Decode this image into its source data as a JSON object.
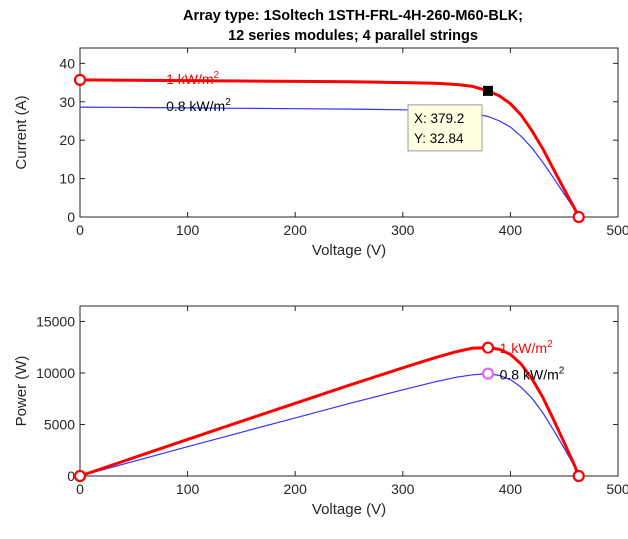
{
  "chart_data": {
    "title_line1": "Array type: 1Soltech 1STH-FRL-4H-260-M60-BLK;",
    "title_line2": "12 series modules; 4 parallel strings",
    "colors": {
      "high": "#ff0000",
      "low": "#3333ff",
      "datatip_bg": "#ffffe1",
      "marker": "#000000",
      "low_marker": "#dd66ff"
    },
    "panels": [
      {
        "type": "line",
        "id": "iv",
        "xlabel": "Voltage (V)",
        "ylabel": "Current (A)",
        "xlim": [
          0,
          500
        ],
        "ylim": [
          0,
          44
        ],
        "xticks": [
          0,
          100,
          200,
          300,
          400,
          500
        ],
        "yticks": [
          0,
          10,
          20,
          30,
          40
        ],
        "grid": false,
        "series": [
          {
            "name": "1 kW/m",
            "label_sup": "2",
            "label_xy": [
              80,
              35.9
            ],
            "color": "#ff0000",
            "x": [
              0,
              50,
              100,
              150,
              200,
              250,
              300,
              330,
              350,
              365,
              379.2,
              390,
              400,
              410,
              420,
              430,
              440,
              450,
              460,
              463.5
            ],
            "y": [
              35.7,
              35.6,
              35.5,
              35.4,
              35.3,
              35.2,
              35.0,
              34.8,
              34.5,
              34.0,
              32.84,
              31.5,
              29.5,
              26.5,
              22.5,
              17.8,
              12.5,
              7.2,
              2.0,
              0
            ]
          },
          {
            "name": "0.8 kW/m",
            "label_sup": "2",
            "label_xy": [
              80,
              28.9
            ],
            "color": "#3333ff",
            "x": [
              0,
              50,
              100,
              150,
              200,
              250,
              300,
              330,
              350,
              365,
              379.2,
              390,
              400,
              410,
              420,
              430,
              440,
              450,
              460,
              463
            ],
            "y": [
              28.6,
              28.5,
              28.4,
              28.3,
              28.2,
              28.1,
              27.9,
              27.7,
              27.4,
              26.9,
              26.2,
              25.0,
              23.4,
              21.0,
              18.0,
              14.3,
              10.2,
              6.0,
              1.8,
              0
            ]
          }
        ],
        "markers": [
          {
            "shape": "circle",
            "color": "#ff0000",
            "x": 0,
            "y": 35.7
          },
          {
            "shape": "circle",
            "color": "#ff0000",
            "x": 463.5,
            "y": 0
          },
          {
            "shape": "square",
            "color": "#000000",
            "x": 379.2,
            "y": 32.84
          }
        ],
        "datatip": {
          "x_label": "X: 379.2",
          "y_label": "Y: 32.84",
          "x": 379.2,
          "y": 32.84
        }
      },
      {
        "type": "line",
        "id": "pv",
        "xlabel": "Voltage (V)",
        "ylabel": "Power (W)",
        "xlim": [
          0,
          500
        ],
        "ylim": [
          0,
          16500
        ],
        "xticks": [
          0,
          100,
          200,
          300,
          400,
          500
        ],
        "yticks": [
          0,
          5000,
          10000,
          15000
        ],
        "grid": false,
        "series": [
          {
            "name": "1 kW/m",
            "label_sup": "2",
            "label_xy": [
              390,
              12400
            ],
            "color": "#ff0000",
            "x": [
              0,
              50,
              100,
              150,
              200,
              250,
              300,
              330,
              350,
              365,
              379.2,
              390,
              400,
              410,
              420,
              430,
              440,
              450,
              460,
              463.5
            ],
            "y": [
              0,
              1780,
              3550,
              5310,
              7060,
              8800,
              10500,
              11484,
              12075,
              12410,
              12453,
              12285,
              11800,
              10865,
              9450,
              7654,
              5500,
              3240,
              920,
              0
            ]
          },
          {
            "name": "0.8 kW/m",
            "label_sup": "2",
            "label_xy": [
              390,
              9850
            ],
            "color": "#3333ff",
            "x": [
              0,
              50,
              100,
              150,
              200,
              250,
              300,
              330,
              350,
              365,
              379.2,
              390,
              400,
              410,
              420,
              430,
              440,
              450,
              460,
              463
            ],
            "y": [
              0,
              1425,
              2840,
              4245,
              5640,
              7025,
              8370,
              9141,
              9590,
              9819,
              9935,
              9750,
              9360,
              8610,
              7560,
              6149,
              4488,
              2700,
              828,
              0
            ]
          }
        ],
        "markers": [
          {
            "shape": "circle",
            "color": "#ff0000",
            "x": 0,
            "y": 0
          },
          {
            "shape": "circle",
            "color": "#ff0000",
            "x": 379.2,
            "y": 12453
          },
          {
            "shape": "circle",
            "color": "#ff0000",
            "x": 463.5,
            "y": 0
          },
          {
            "shape": "circle",
            "color": "#dd66ff",
            "x": 379.2,
            "y": 9935
          }
        ]
      }
    ]
  }
}
